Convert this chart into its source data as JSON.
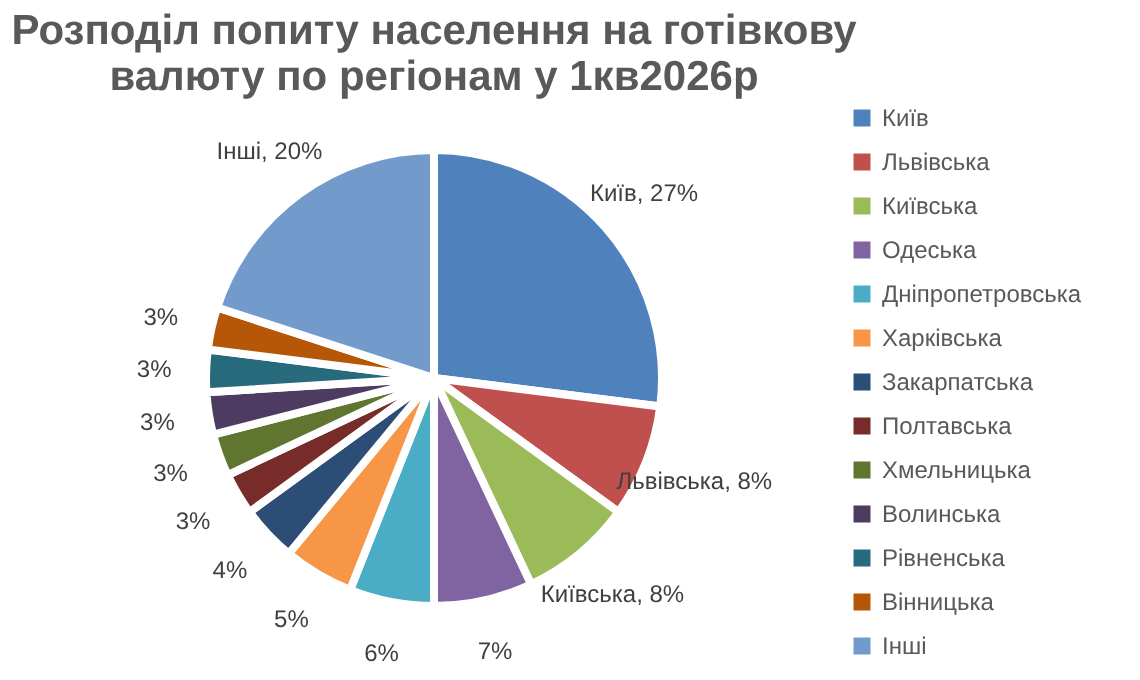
{
  "chart_data": {
    "type": "pie",
    "title": [
      "Розподіл попиту населення на готівкову",
      "валюту по регіонам у 1кв2026р"
    ],
    "categories": [
      "Київ",
      "Львівська",
      "Київська",
      "Одеська",
      "Дніпропетровська",
      "Харківська",
      "Закарпатська",
      "Полтавська",
      "Хмельницька",
      "Волинська",
      "Рівненська",
      "Вінницька",
      "Інші"
    ],
    "values": [
      27,
      8,
      8,
      7,
      6,
      5,
      4,
      3,
      3,
      3,
      3,
      3,
      20
    ],
    "colors": [
      "#4f81bd",
      "#c0504d",
      "#9bbb59",
      "#8064a2",
      "#4bacc6",
      "#f79646",
      "#2c4d75",
      "#772c2a",
      "#5f7530",
      "#4d3b62",
      "#276a7c",
      "#b65708",
      "#729aca"
    ],
    "value_labels": [
      "Київ, 27%",
      "Львівська, 8%",
      "Київська, 8%",
      "7%",
      "6%",
      "5%",
      "4%",
      "3%",
      "3%",
      "3%",
      "3%",
      "3%",
      "Інші, 20%"
    ],
    "legend": "right"
  }
}
